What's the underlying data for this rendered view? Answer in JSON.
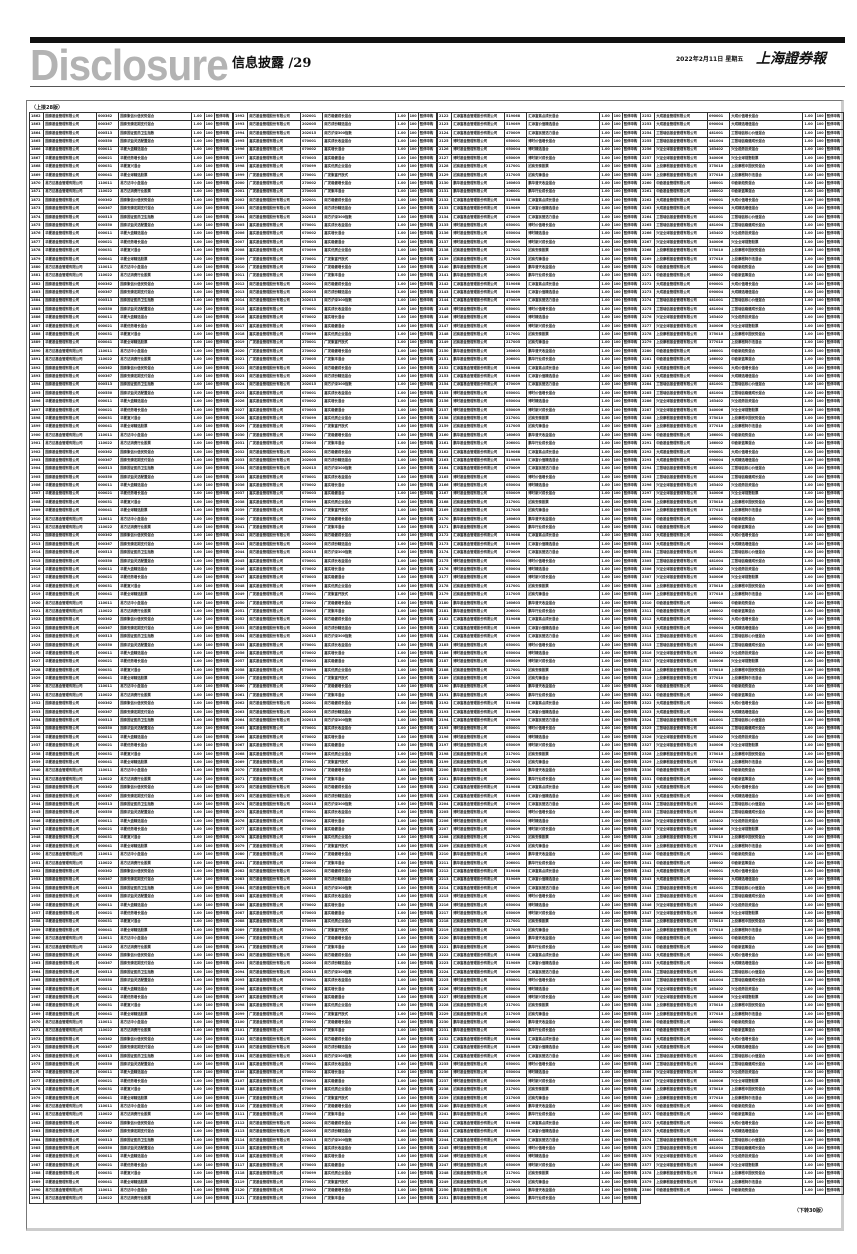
{
  "header": {
    "brand": "Disclosure",
    "section": "信息披露",
    "page": "/29",
    "date": "2022年2月11日 星期五",
    "paper": "上海證券報"
  },
  "continued_from": "（上接28版）",
  "continued_to": "（下转30版）",
  "columns": [
    {
      "start": 1862,
      "rows": [
        "国泰基金管理有限公司|000362|国泰聚信价值优势混合",
        "国泰基金管理有限公司|000367|国泰安康定期支付混合",
        "国泰基金管理有限公司|000513|国泰国证医药卫生指数",
        "国泰基金管理有限公司|000550|国泰浓益灵活配置混合",
        "华夏基金管理有限公司|000011|华夏大盘精选混合",
        "华夏基金管理有限公司|000021|华夏优势增长混合",
        "华夏基金管理有限公司|000031|华夏复兴混合",
        "华夏基金管理有限公司|000041|华夏全球精选股票",
        "易方达基金管理有限公司|110011|易方达中小盘混合",
        "易方达基金管理有限公司|110022|易方达消费行业股票"
      ]
    },
    {
      "start": 1992,
      "rows": [
        "南方基金管理股份有限公司|202001|南方稳健成长混合",
        "南方基金管理股份有限公司|202005|南方成份精选混合",
        "南方基金管理股份有限公司|202015|南方沪深300指数",
        "嘉实基金管理有限公司|070001|嘉实成长收益混合",
        "嘉实基金管理有限公司|070002|嘉实增长混合",
        "嘉实基金管理有限公司|070003|嘉实稳健混合",
        "嘉实基金管理有限公司|070099|嘉实优质企业混合",
        "广发基金管理有限公司|270001|广发聚富开放式",
        "广发基金管理有限公司|270002|广发稳健增长混合",
        "广发基金管理有限公司|270005|广发聚丰混合"
      ]
    },
    {
      "start": 2122,
      "rows": [
        "汇添富基金管理股份有限公司|519068|汇添富焦点成长混合",
        "汇添富基金管理股份有限公司|519069|汇添富价值精选混合",
        "汇添富基金管理股份有限公司|470009|汇添富民营活力混合",
        "博时基金管理有限公司|050001|博时价值增长混合",
        "博时基金管理有限公司|050004|博时精选混合",
        "博时基金管理有限公司|050009|博时新兴成长混合",
        "招商基金管理有限公司|217001|招商安泰股票",
        "招商基金管理有限公司|217005|招商先锋混合",
        "鹏华基金管理有限公司|160603|鹏华普天收益混合",
        "鹏华基金管理有限公司|206001|鹏华行业成长混合"
      ]
    },
    {
      "start": 2252,
      "rows": [
        "大成基金管理有限公司|090001|大成价值增长混合",
        "大成基金管理有限公司|090004|大成精选增值混合",
        "工银瑞信基金管理有限公司|481001|工银瑞信核心价值混合",
        "工银瑞信基金管理有限公司|481004|工银瑞信稳健成长混合",
        "兴证全球基金管理有限公司|163402|兴全趋势投资混合",
        "兴证全球基金管理有限公司|340006|兴全全球视野股票",
        "上投摩根基金管理有限公司|375010|上投摩根中国优势混合",
        "上投摩根基金管理有限公司|377010|上投摩根阿尔法混合",
        "中欧基金管理有限公司|166001|中欧新趋势混合",
        "中欧基金管理有限公司|166002|中欧新蓝筹混合"
      ]
    }
  ],
  "row_tail": [
    "1.00",
    "100",
    "暂停申购"
  ]
}
